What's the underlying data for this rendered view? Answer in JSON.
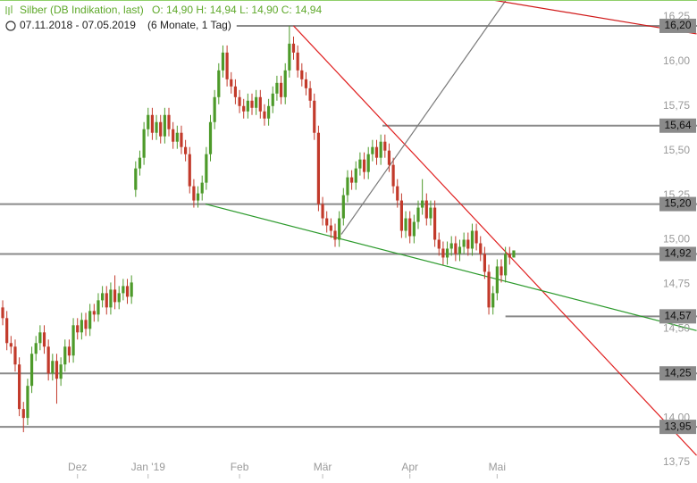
{
  "chart_data": {
    "type": "candlestick",
    "title": "Silber (DB Indikation, last)",
    "quote": "O: 14,90  H: 14,94  L: 14,90  C: 14,94",
    "range": "07.11.2018 - 07.05.2019",
    "period": "(6 Monate, 1 Tag)",
    "up_color": "#4d9a2a",
    "down_color": "#c23a2b",
    "xlim": [
      -0.65,
      167.1
    ],
    "ylim": [
      13.66,
      16.345
    ],
    "xticks": [
      {
        "value": 18,
        "label": "Dez"
      },
      {
        "value": 35,
        "label": "Jan '19"
      },
      {
        "value": 57,
        "label": "Feb"
      },
      {
        "value": 77,
        "label": "Mär"
      },
      {
        "value": 98,
        "label": "Apr"
      },
      {
        "value": 119,
        "label": "Mai"
      }
    ],
    "yticks": [
      {
        "value": 13.75,
        "label": "13,75"
      },
      {
        "value": 14.0,
        "label": "14,00"
      },
      {
        "value": 14.25,
        "label": "14,25"
      },
      {
        "value": 14.5,
        "label": "14,50"
      },
      {
        "value": 14.75,
        "label": "14,75"
      },
      {
        "value": 15.0,
        "label": "15,00"
      },
      {
        "value": 15.25,
        "label": "15,25"
      },
      {
        "value": 15.5,
        "label": "15,50"
      },
      {
        "value": 15.75,
        "label": "15,75"
      },
      {
        "value": 16.0,
        "label": "16,00"
      },
      {
        "value": 16.25,
        "label": "16,25"
      }
    ],
    "open": [
      14.62,
      14.56,
      14.42,
      14.4,
      14.3,
      14.05,
      14.0,
      14.18,
      14.36,
      14.42,
      14.48,
      14.4,
      14.25,
      14.32,
      14.22,
      14.3,
      14.4,
      14.35,
      14.52,
      14.48,
      14.55,
      14.5,
      14.6,
      14.58,
      14.66,
      14.7,
      14.62,
      14.72,
      14.65,
      14.7,
      14.74,
      14.68,
      15.28,
      15.4,
      15.46,
      15.62,
      15.7,
      15.6,
      15.66,
      15.58,
      15.7,
      15.62,
      15.55,
      15.6,
      15.52,
      15.48,
      15.3,
      15.22,
      15.26,
      15.32,
      15.48,
      15.66,
      15.8,
      15.95,
      16.05,
      15.9,
      15.86,
      15.8,
      15.75,
      15.72,
      15.78,
      15.74,
      15.8,
      15.72,
      15.68,
      15.75,
      15.82,
      15.88,
      15.8,
      15.95,
      16.1,
      16.05,
      15.95,
      15.9,
      15.85,
      15.78,
      15.6,
      15.2,
      15.12,
      15.08,
      15.05,
      15.0,
      15.12,
      15.25,
      15.35,
      15.32,
      15.4,
      15.45,
      15.38,
      15.48,
      15.52,
      15.46,
      15.55,
      15.5,
      15.42,
      15.3,
      15.22,
      15.05,
      15.12,
      15.02,
      15.1,
      15.18,
      15.22,
      15.12,
      15.18,
      15.0,
      14.95,
      14.9,
      14.95,
      14.98,
      14.92,
      14.96,
      15.0,
      14.95,
      15.05,
      14.98,
      14.92,
      14.82,
      14.62,
      14.7,
      14.85,
      14.8,
      14.92,
      14.9
    ],
    "high": [
      14.66,
      14.6,
      14.46,
      14.44,
      14.34,
      14.09,
      14.22,
      14.4,
      14.46,
      14.52,
      14.52,
      14.44,
      14.36,
      14.36,
      14.34,
      14.44,
      14.44,
      14.56,
      14.56,
      14.59,
      14.59,
      14.64,
      14.64,
      14.7,
      14.74,
      14.74,
      14.76,
      14.8,
      14.74,
      14.78,
      14.78,
      14.8,
      15.44,
      15.5,
      15.66,
      15.74,
      15.74,
      15.7,
      15.7,
      15.74,
      15.74,
      15.66,
      15.64,
      15.64,
      15.56,
      15.52,
      15.34,
      15.3,
      15.36,
      15.52,
      15.7,
      15.84,
      15.99,
      16.09,
      16.09,
      15.94,
      15.9,
      15.84,
      15.79,
      15.82,
      15.82,
      15.84,
      15.84,
      15.76,
      15.79,
      15.86,
      15.92,
      15.92,
      15.99,
      16.2,
      16.14,
      16.09,
      15.99,
      15.94,
      15.89,
      15.82,
      15.64,
      15.24,
      15.16,
      15.12,
      15.09,
      15.16,
      15.29,
      15.39,
      15.39,
      15.44,
      15.49,
      15.49,
      15.52,
      15.56,
      15.56,
      15.59,
      15.59,
      15.54,
      15.46,
      15.34,
      15.26,
      15.16,
      15.16,
      15.14,
      15.22,
      15.34,
      15.26,
      15.22,
      15.22,
      15.04,
      14.99,
      14.99,
      15.02,
      15.02,
      15.0,
      15.04,
      15.04,
      15.09,
      15.09,
      15.02,
      14.96,
      14.86,
      14.74,
      14.89,
      14.89,
      14.96,
      14.96,
      14.94
    ],
    "low": [
      14.52,
      14.38,
      14.36,
      14.26,
      14.01,
      13.92,
      13.96,
      14.14,
      14.32,
      14.38,
      14.36,
      14.21,
      14.21,
      14.08,
      14.18,
      14.26,
      14.31,
      14.31,
      14.44,
      14.44,
      14.46,
      14.46,
      14.54,
      14.54,
      14.62,
      14.58,
      14.58,
      14.61,
      14.61,
      14.66,
      14.64,
      14.64,
      15.24,
      15.36,
      15.42,
      15.58,
      15.56,
      15.56,
      15.54,
      15.54,
      15.58,
      15.51,
      15.51,
      15.48,
      15.44,
      15.26,
      15.18,
      15.18,
      15.22,
      15.28,
      15.44,
      15.62,
      15.76,
      15.91,
      15.86,
      15.82,
      15.76,
      15.71,
      15.68,
      15.68,
      15.7,
      15.7,
      15.68,
      15.64,
      15.64,
      15.71,
      15.78,
      15.76,
      15.76,
      15.91,
      16.01,
      15.91,
      15.86,
      15.81,
      15.74,
      15.56,
      15.16,
      15.08,
      15.04,
      15.01,
      14.96,
      14.96,
      15.08,
      15.21,
      15.28,
      15.28,
      15.36,
      15.34,
      15.34,
      15.44,
      15.42,
      15.42,
      15.46,
      15.38,
      15.26,
      15.18,
      15.01,
      15.01,
      14.98,
      14.98,
      15.06,
      15.14,
      15.08,
      15.08,
      14.96,
      14.91,
      14.86,
      14.86,
      14.91,
      14.88,
      14.88,
      14.92,
      14.91,
      14.91,
      14.94,
      14.88,
      14.78,
      14.58,
      14.58,
      14.66,
      14.76,
      14.76,
      14.86,
      14.9
    ],
    "close": [
      14.56,
      14.42,
      14.4,
      14.3,
      14.05,
      14.0,
      14.18,
      14.36,
      14.42,
      14.48,
      14.4,
      14.25,
      14.32,
      14.22,
      14.3,
      14.4,
      14.35,
      14.52,
      14.48,
      14.55,
      14.5,
      14.6,
      14.58,
      14.66,
      14.7,
      14.62,
      14.72,
      14.65,
      14.7,
      14.74,
      14.68,
      14.76,
      15.4,
      15.46,
      15.62,
      15.7,
      15.6,
      15.66,
      15.58,
      15.7,
      15.62,
      15.55,
      15.6,
      15.52,
      15.48,
      15.3,
      15.22,
      15.26,
      15.32,
      15.48,
      15.66,
      15.8,
      15.95,
      16.05,
      15.9,
      15.86,
      15.8,
      15.75,
      15.72,
      15.78,
      15.74,
      15.8,
      15.72,
      15.68,
      15.75,
      15.82,
      15.88,
      15.8,
      15.95,
      16.1,
      16.05,
      15.95,
      15.9,
      15.85,
      15.78,
      15.6,
      15.2,
      15.12,
      15.08,
      15.05,
      15.0,
      15.12,
      15.25,
      15.35,
      15.32,
      15.4,
      15.45,
      15.38,
      15.48,
      15.52,
      15.46,
      15.55,
      15.5,
      15.42,
      15.3,
      15.22,
      15.05,
      15.12,
      15.02,
      15.1,
      15.18,
      15.22,
      15.12,
      15.18,
      15.0,
      14.95,
      14.9,
      14.95,
      14.98,
      14.92,
      14.96,
      15.0,
      14.95,
      15.05,
      14.98,
      14.92,
      14.82,
      14.62,
      14.7,
      14.85,
      14.8,
      14.92,
      14.9,
      14.94
    ],
    "levels": [
      {
        "value": 16.2,
        "label": "16,20",
        "from": 56.3
      },
      {
        "value": 15.64,
        "label": "15,64",
        "from": 91.4
      },
      {
        "value": 15.2,
        "label": "15,20",
        "from": -0.65
      },
      {
        "value": 14.92,
        "label": "14,92",
        "from": -0.65
      },
      {
        "value": 14.57,
        "label": "14,57",
        "from": 121
      },
      {
        "value": 14.25,
        "label": "14,25",
        "from": -0.65
      },
      {
        "value": 13.95,
        "label": "13,95",
        "from": -0.65
      }
    ],
    "level_color": "#8a8a8a",
    "trendlines": [
      {
        "color": "#e02020",
        "x": [
          70,
          167
        ],
        "y": [
          16.2,
          13.79
        ]
      },
      {
        "color": "#2c9a2c",
        "x": [
          48.8,
          167
        ],
        "y": [
          15.2,
          14.49
        ]
      },
      {
        "color": "#7a7a7a",
        "x": [
          81.5,
          121.3
        ],
        "y": [
          15.03,
          16.35
        ]
      },
      {
        "color": "#d01818",
        "x": [
          116.6,
          167
        ],
        "y": [
          16.35,
          16.155
        ]
      }
    ]
  }
}
